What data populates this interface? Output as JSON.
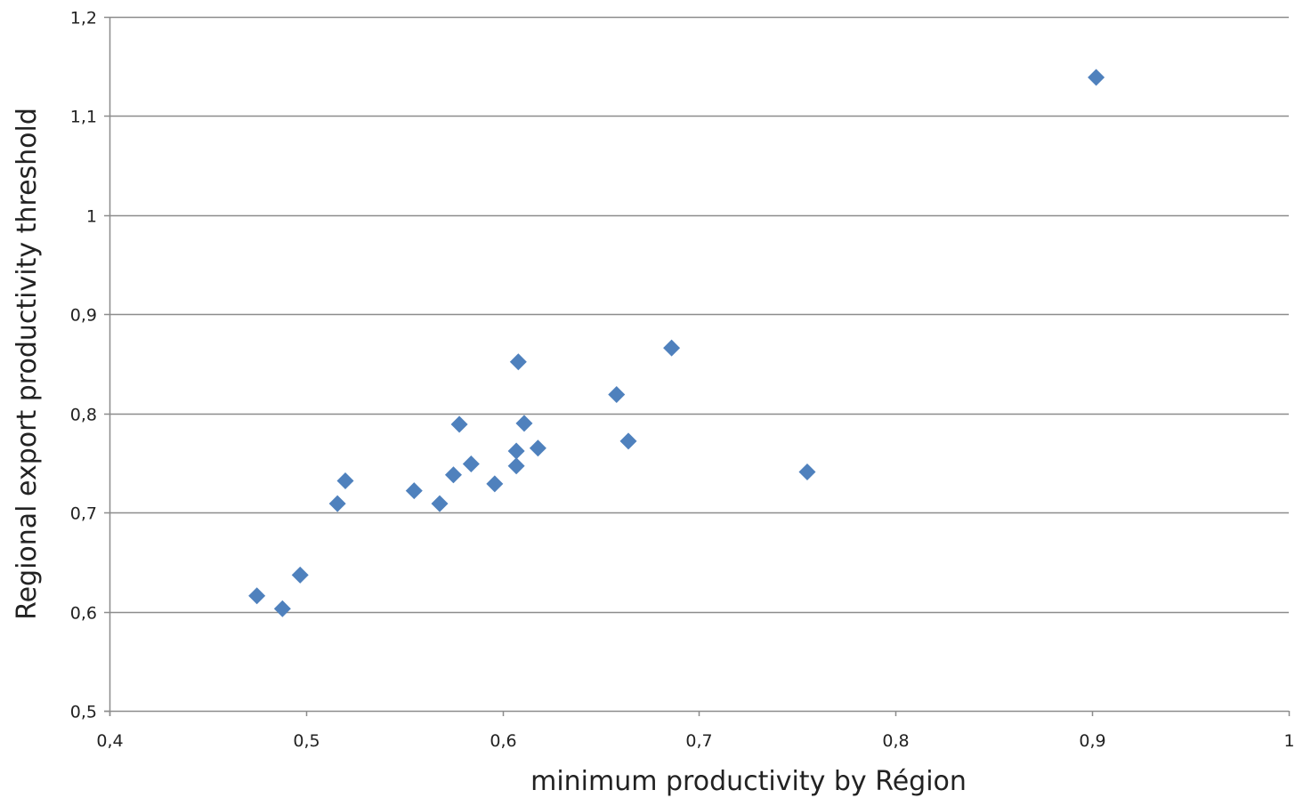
{
  "chart_data": {
    "type": "scatter",
    "title": "",
    "xlabel": "minimum productivity by Région",
    "ylabel": "Regional export productivity threshold",
    "xlim": [
      0.4,
      1.0
    ],
    "ylim": [
      0.5,
      1.2
    ],
    "x_ticks": [
      0.4,
      0.5,
      0.6,
      0.7,
      0.8,
      0.9,
      1.0
    ],
    "x_tick_labels": [
      "0,4",
      "0,5",
      "0,6",
      "0,7",
      "0,8",
      "0,9",
      "1"
    ],
    "y_ticks": [
      0.5,
      0.6,
      0.7,
      0.8,
      0.9,
      1.0,
      1.1,
      1.2
    ],
    "y_tick_labels": [
      "0,5",
      "0,6",
      "0,7",
      "0,8",
      "0,9",
      "1",
      "1,1",
      "1,2"
    ],
    "horizontal_gridlines": true,
    "vertical_gridlines": false,
    "legend": "none",
    "marker": "diamond",
    "marker_color": "#4F81BD",
    "series": [
      {
        "x": [
          0.475,
          0.488,
          0.497,
          0.516,
          0.52,
          0.555,
          0.568,
          0.575,
          0.578,
          0.584,
          0.596,
          0.607,
          0.607,
          0.608,
          0.611,
          0.618,
          0.658,
          0.664,
          0.686,
          0.755,
          0.902
        ],
        "y": [
          0.616,
          0.603,
          0.637,
          0.709,
          0.732,
          0.722,
          0.709,
          0.738,
          0.789,
          0.749,
          0.729,
          0.762,
          0.747,
          0.852,
          0.79,
          0.765,
          0.819,
          0.772,
          0.866,
          0.741,
          1.139
        ]
      }
    ]
  }
}
